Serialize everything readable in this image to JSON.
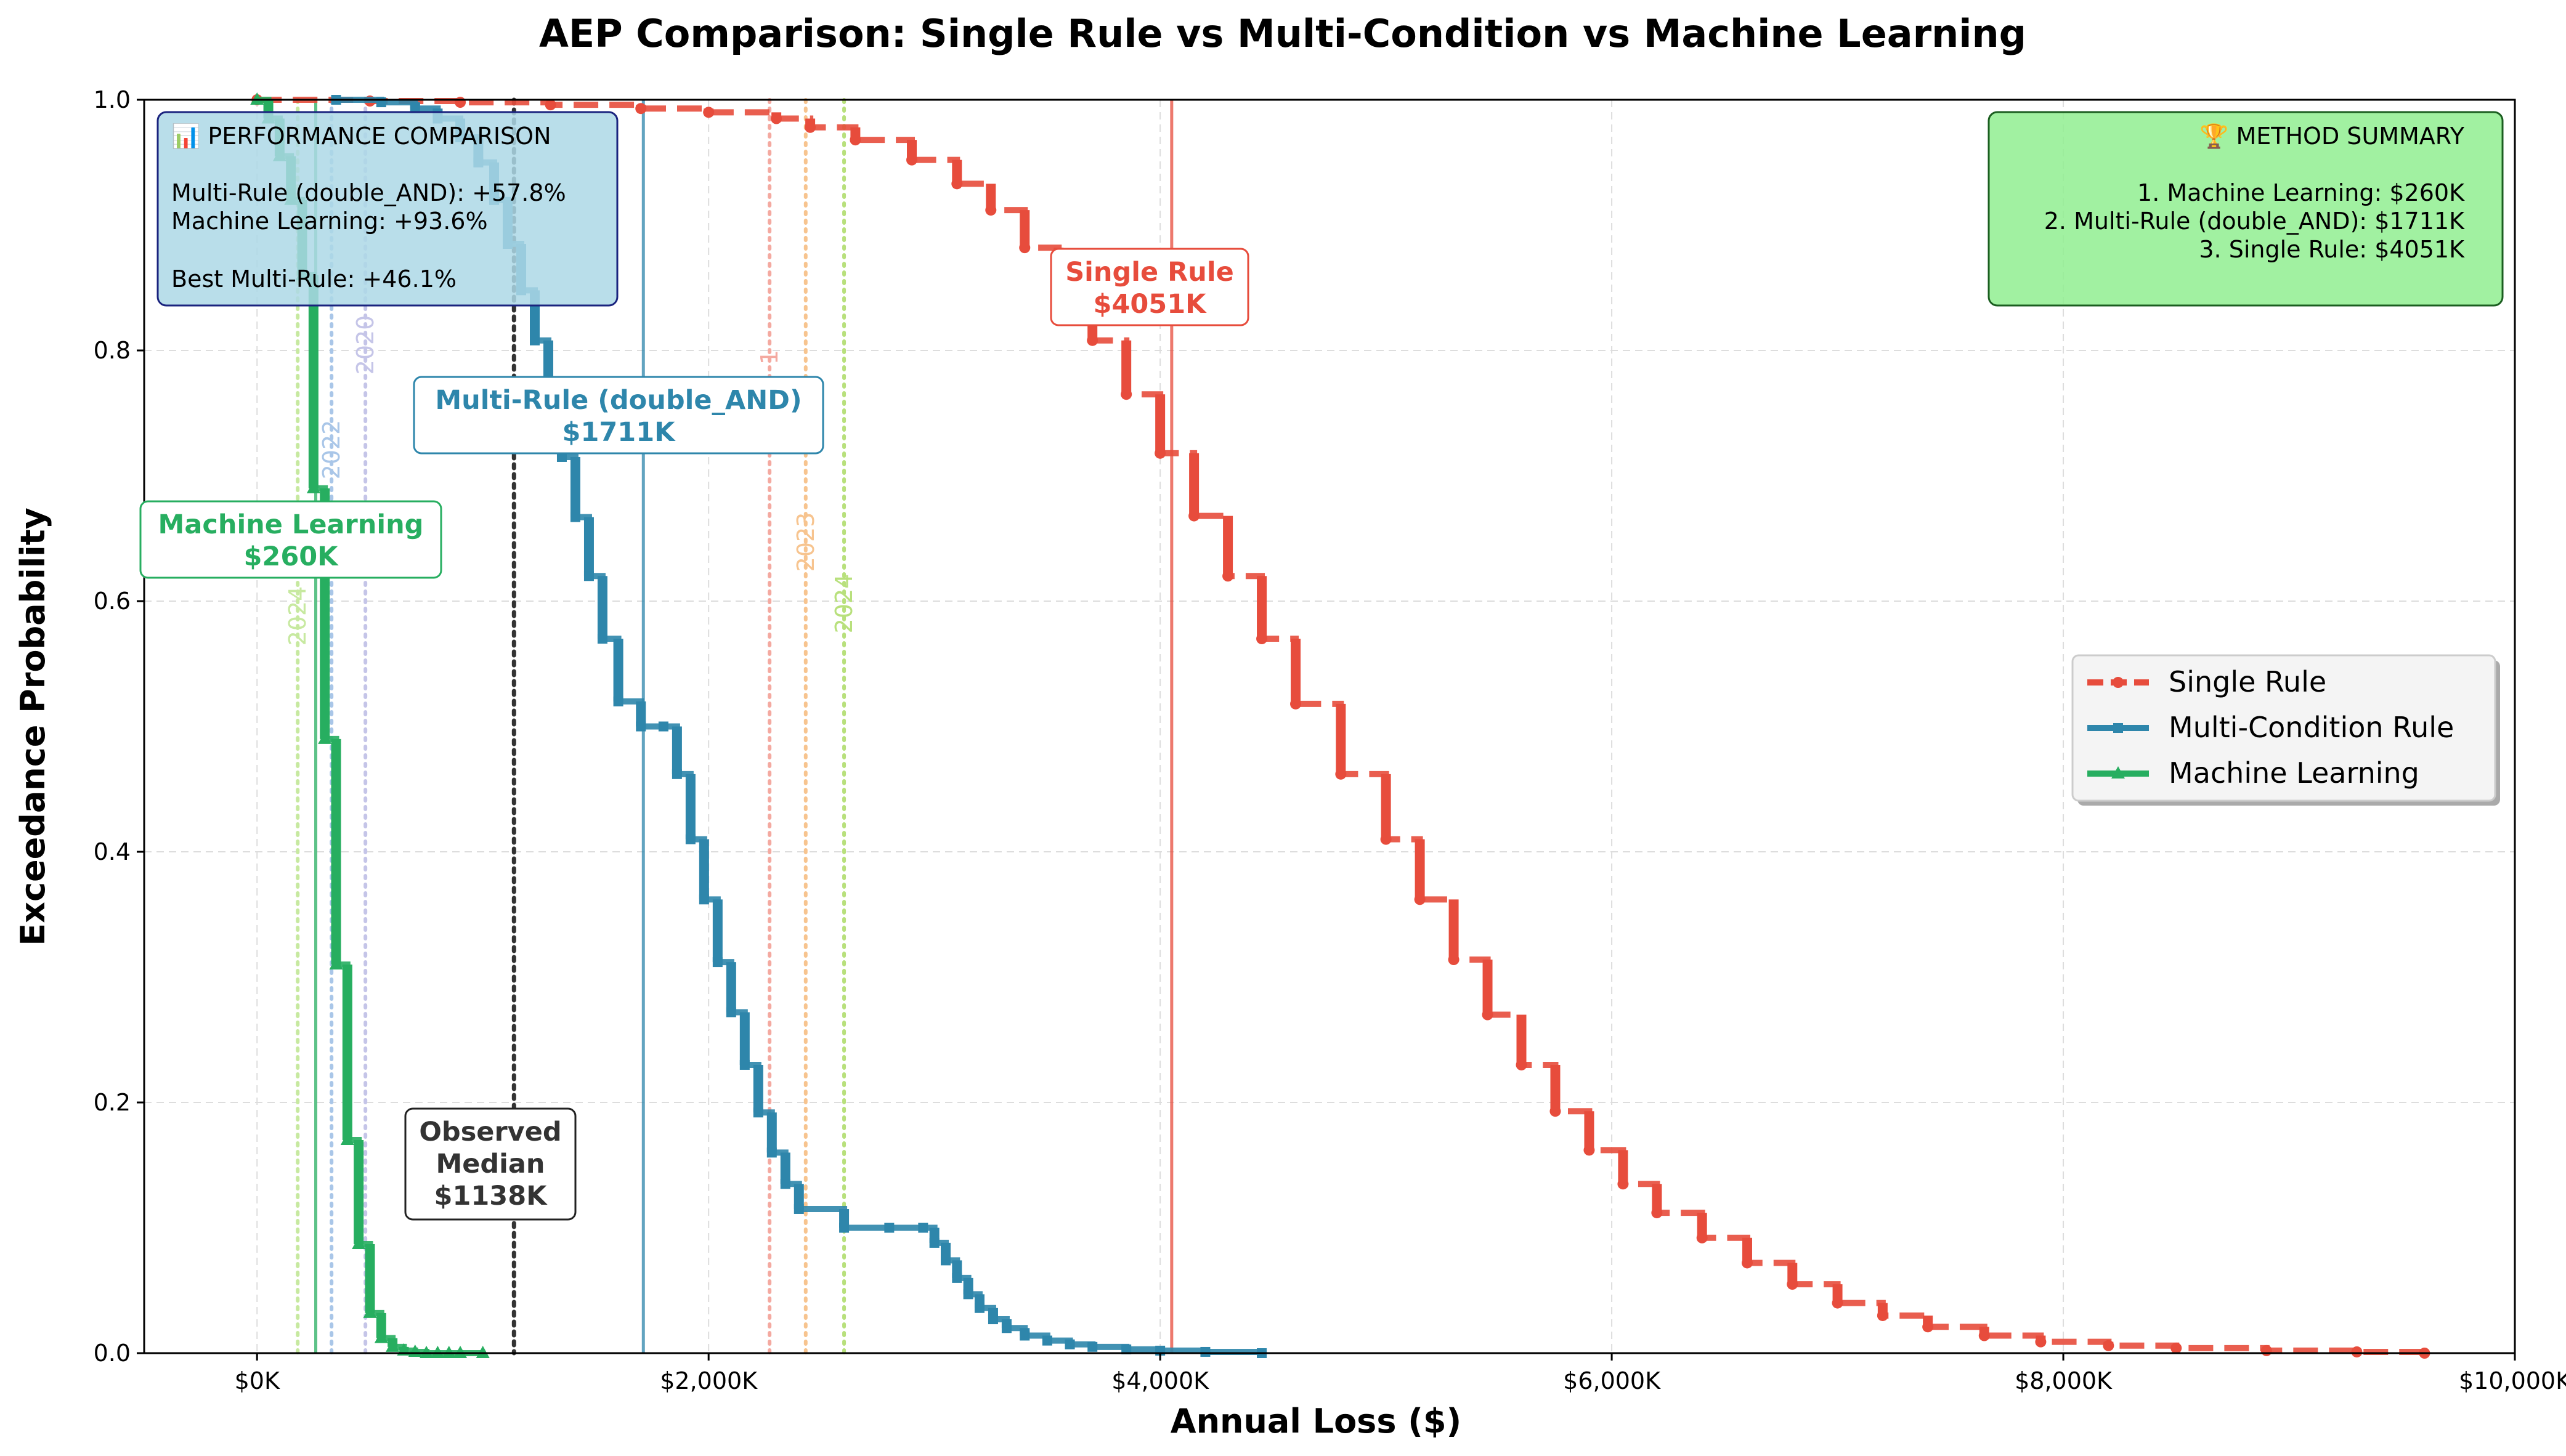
{
  "chart_data": {
    "type": "line",
    "title": "AEP Comparison: Single Rule vs Multi-Condition vs Machine Learning",
    "xlabel": "Annual Loss ($)",
    "ylabel": "Exceedance Probability",
    "xlim": [
      -500,
      10000
    ],
    "ylim": [
      0,
      1.0
    ],
    "x_ticks": [
      0,
      2000,
      4000,
      6000,
      8000,
      10000
    ],
    "x_tick_labels": [
      "$0K",
      "$2,000K",
      "$4,000K",
      "$6,000K",
      "$8,000K",
      "$10,000K"
    ],
    "y_ticks": [
      0.0,
      0.2,
      0.4,
      0.6,
      0.8,
      1.0
    ],
    "y_tick_labels": [
      "0.0",
      "0.2",
      "0.4",
      "0.6",
      "0.8",
      "1.0"
    ],
    "grid": true,
    "legend": {
      "position": "center-right",
      "entries": [
        "Single Rule",
        "Multi-Condition Rule",
        "Machine Learning"
      ]
    },
    "series": [
      {
        "name": "Single Rule",
        "color": "#e74c3c",
        "style": "dashed-step",
        "marker": "circle",
        "x": [
          0,
          500,
          900,
          1300,
          1700,
          2000,
          2300,
          2450,
          2650,
          2900,
          3100,
          3250,
          3400,
          3550,
          3700,
          3850,
          4000,
          4150,
          4300,
          4450,
          4600,
          4800,
          5000,
          5150,
          5300,
          5450,
          5600,
          5750,
          5900,
          6050,
          6200,
          6400,
          6600,
          6800,
          7000,
          7200,
          7400,
          7650,
          7900,
          8200,
          8500,
          8900,
          9300,
          9600
        ],
        "y": [
          1.0,
          0.999,
          0.998,
          0.996,
          0.993,
          0.99,
          0.985,
          0.978,
          0.968,
          0.952,
          0.933,
          0.912,
          0.882,
          0.845,
          0.808,
          0.765,
          0.718,
          0.668,
          0.62,
          0.57,
          0.518,
          0.462,
          0.41,
          0.362,
          0.314,
          0.27,
          0.23,
          0.193,
          0.162,
          0.135,
          0.112,
          0.092,
          0.072,
          0.055,
          0.04,
          0.03,
          0.021,
          0.014,
          0.009,
          0.006,
          0.004,
          0.002,
          0.001,
          0.0
        ]
      },
      {
        "name": "Multi-Condition Rule",
        "color": "#2e86ab",
        "style": "solid-step",
        "marker": "square",
        "x": [
          350,
          550,
          700,
          800,
          900,
          980,
          1050,
          1110,
          1170,
          1230,
          1290,
          1350,
          1410,
          1470,
          1530,
          1600,
          1700,
          1800,
          1860,
          1920,
          1980,
          2040,
          2100,
          2160,
          2220,
          2280,
          2340,
          2400,
          2600,
          2800,
          2950,
          3000,
          3050,
          3100,
          3150,
          3200,
          3260,
          3320,
          3400,
          3500,
          3600,
          3700,
          3850,
          4000,
          4200,
          4450
        ],
        "y": [
          1.0,
          0.998,
          0.993,
          0.985,
          0.97,
          0.95,
          0.92,
          0.885,
          0.848,
          0.808,
          0.765,
          0.715,
          0.667,
          0.62,
          0.57,
          0.52,
          0.5,
          0.5,
          0.462,
          0.41,
          0.362,
          0.312,
          0.272,
          0.23,
          0.192,
          0.16,
          0.135,
          0.115,
          0.1,
          0.1,
          0.1,
          0.088,
          0.074,
          0.06,
          0.047,
          0.036,
          0.027,
          0.02,
          0.014,
          0.01,
          0.007,
          0.005,
          0.003,
          0.002,
          0.001,
          0.0
        ]
      },
      {
        "name": "Machine Learning",
        "color": "#27ae60",
        "style": "solid-step",
        "marker": "triangle",
        "x": [
          0,
          50,
          100,
          150,
          200,
          250,
          300,
          350,
          400,
          450,
          500,
          550,
          600,
          650,
          700,
          750,
          800,
          850,
          900,
          1000
        ],
        "y": [
          1.0,
          0.985,
          0.955,
          0.92,
          0.86,
          0.69,
          0.49,
          0.31,
          0.17,
          0.087,
          0.032,
          0.012,
          0.005,
          0.002,
          0.001,
          0.0,
          0.0,
          0.0,
          0.0,
          0.0
        ]
      }
    ],
    "reference_lines": [
      {
        "label": "Single Rule",
        "value_label": "$4051K",
        "x": 4051,
        "color": "#e74c3c",
        "style": "solid"
      },
      {
        "label": "Multi-Rule (double_AND)",
        "value_label": "$1711K",
        "x": 1711,
        "color": "#2e86ab",
        "style": "solid"
      },
      {
        "label": "Machine Learning",
        "value_label": "$260K",
        "x": 260,
        "color": "#27ae60",
        "style": "solid"
      },
      {
        "label": "Observed\nMedian",
        "value_label": "$1138K",
        "x": 1138,
        "color": "#333333",
        "style": "dotted"
      }
    ],
    "year_lines": [
      {
        "x": 180,
        "color": "#c7e9a0",
        "label": "2024"
      },
      {
        "x": 330,
        "color": "#a9c6e8",
        "label": "2022"
      },
      {
        "x": 480,
        "color": "#c5c5e8",
        "label": "2020"
      },
      {
        "x": 2270,
        "color": "#f4a9a0",
        "label": "1"
      },
      {
        "x": 2430,
        "color": "#f7c48f",
        "label": "2023"
      },
      {
        "x": 2600,
        "color": "#b8e07c",
        "label": "2024"
      }
    ],
    "annotations": {
      "single_rule": {
        "line1": "Single Rule",
        "line2": "$4051K"
      },
      "multi_rule": {
        "line1": "Multi-Rule (double_AND)",
        "line2": "$1711K"
      },
      "ml": {
        "line1": "Machine Learning",
        "line2": "$260K"
      },
      "median": {
        "line1": "Observed",
        "line2": "Median",
        "line3": "$1138K"
      }
    },
    "performance_box": {
      "title": "📊 PERFORMANCE COMPARISON",
      "line1": "Multi-Rule (double_AND): +57.8%",
      "line2": "Machine Learning: +93.6%",
      "line3": "Best Multi-Rule: +46.1%"
    },
    "summary_box": {
      "title": "🏆 METHOD SUMMARY",
      "line1": "1. Machine Learning: $260K",
      "line2": "2. Multi-Rule (double_AND): $1711K",
      "line3": "3. Single Rule: $4051K"
    }
  }
}
